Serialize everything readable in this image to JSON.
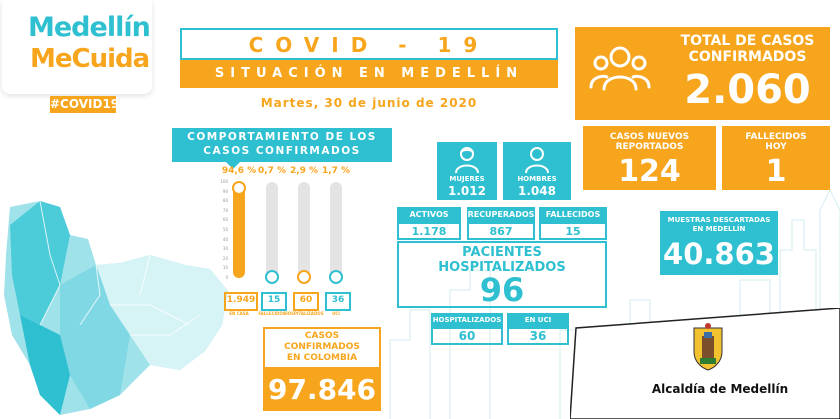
{
  "logo": {
    "line1": "Medellín",
    "line2": "MeCuida",
    "hashtag": "#COVID19"
  },
  "header": {
    "title": "COVID - 19",
    "subtitle": "SITUACIÓN EN MEDELLÍN",
    "date": "Martes, 30 de junio de 2020"
  },
  "total": {
    "label_line1": "TOTAL DE CASOS",
    "label_line2": "CONFIRMADOS",
    "value": "2.060"
  },
  "nuevos": {
    "label_line1": "CASOS NUEVOS",
    "label_line2": "REPORTADOS",
    "value": "124"
  },
  "fallecidos_hoy": {
    "label_line1": "FALLECIDOS",
    "label_line2": "HOY",
    "value": "1"
  },
  "behavior": {
    "title_line1": "COMPORTAMIENTO DE LOS",
    "title_line2": "CASOS CONFIRMADOS"
  },
  "chart_data": {
    "type": "bar",
    "categories": [
      "EN CASA",
      "FALLECIDOS",
      "HOSPITALIZADOS",
      "UCI"
    ],
    "percent_labels": [
      "94,6 %",
      "0,7 %",
      "2,9 %",
      "1,7 %"
    ],
    "percent_values": [
      94.6,
      0.7,
      2.9,
      1.7
    ],
    "count_labels": [
      "1.949",
      "15",
      "60",
      "36"
    ],
    "y_ticks": [
      "100",
      "90",
      "80",
      "70",
      "60",
      "50",
      "40",
      "30",
      "20",
      "10",
      "0"
    ],
    "ylim": [
      0,
      100
    ],
    "colors": {
      "fill": "#f7a51c",
      "track": "#e4e4e4",
      "accent": "#2ebfd0"
    }
  },
  "gender": {
    "mujeres": {
      "label": "MUJERES",
      "value": "1.012"
    },
    "hombres": {
      "label": "HOMBRES",
      "value": "1.048"
    }
  },
  "status": {
    "activos": {
      "label": "ACTIVOS",
      "value": "1.178"
    },
    "recuperados": {
      "label": "RECUPERADOS",
      "value": "867"
    },
    "fallecidos": {
      "label": "FALLECIDOS",
      "value": "15"
    }
  },
  "pacientes": {
    "label_line1": "PACIENTES",
    "label_line2": "HOSPITALIZADOS",
    "value": "96"
  },
  "hosp": {
    "hospitalizados": {
      "label": "HOSPITALIZADOS",
      "value": "60"
    },
    "uci": {
      "label": "EN UCI",
      "value": "36"
    }
  },
  "muestras": {
    "label_line1": "MUESTRAS DESCARTADAS",
    "label_line2": "EN MEDELLÍN",
    "value": "40.863"
  },
  "colombia": {
    "label_line1": "CASOS",
    "label_line2": "CONFIRMADOS",
    "label_line3": "EN COLOMBIA",
    "value": "97.846"
  },
  "alcaldia": {
    "name": "Alcaldía de Medellín"
  },
  "colors": {
    "teal": "#2ebfd0",
    "orange": "#f7a51c"
  }
}
